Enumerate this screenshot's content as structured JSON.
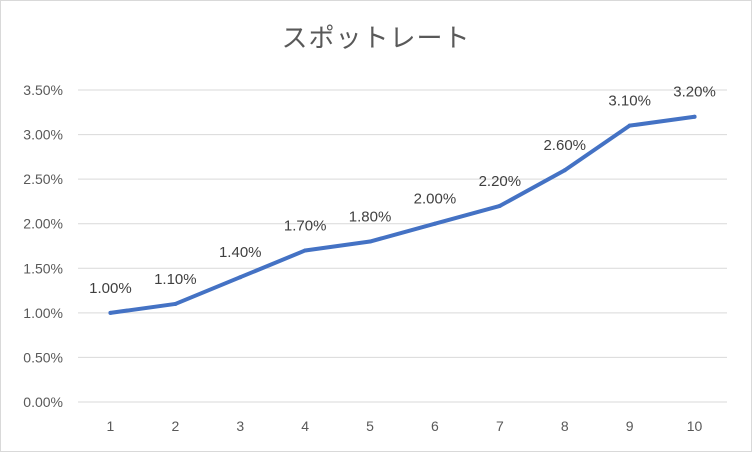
{
  "chart_data": {
    "type": "line",
    "title": "スポットレート",
    "x": [
      1,
      2,
      3,
      4,
      5,
      6,
      7,
      8,
      9,
      10
    ],
    "values": [
      1.0,
      1.1,
      1.4,
      1.7,
      1.8,
      2.0,
      2.2,
      2.6,
      3.1,
      3.2
    ],
    "data_labels": [
      "1.00%",
      "1.10%",
      "1.40%",
      "1.70%",
      "1.80%",
      "2.00%",
      "2.20%",
      "2.60%",
      "3.10%",
      "3.20%"
    ],
    "y_ticks": [
      0.0,
      0.5,
      1.0,
      1.5,
      2.0,
      2.5,
      3.0,
      3.5
    ],
    "y_tick_labels": [
      "0.00%",
      "0.50%",
      "1.00%",
      "1.50%",
      "2.00%",
      "2.50%",
      "3.00%",
      "3.50%"
    ],
    "x_tick_labels": [
      "1",
      "2",
      "3",
      "4",
      "5",
      "6",
      "7",
      "8",
      "9",
      "10"
    ],
    "ylim": [
      0,
      3.5
    ],
    "xlabel": "",
    "ylabel": "",
    "grid": true,
    "legend": "none",
    "line_color": "#4472c4",
    "grid_color": "#d9d9d9"
  }
}
